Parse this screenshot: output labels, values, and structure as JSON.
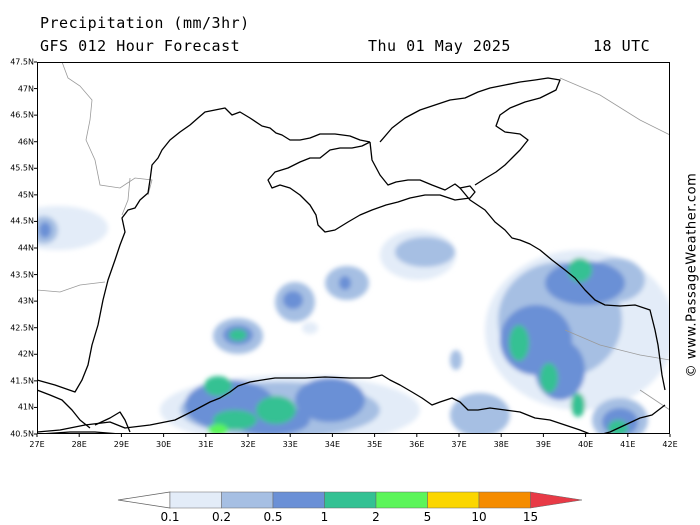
{
  "header": {
    "title": "Precipitation (mm/3hr)",
    "subtitle": "GFS 012 Hour Forecast",
    "date": "Thu 01 May 2025",
    "time": "18 UTC"
  },
  "credit": "© www.PassageWeather.com",
  "map": {
    "lon_range": [
      27,
      42
    ],
    "lat_range": [
      40.5,
      47.5
    ],
    "lat_ticks": [
      "47.5N",
      "47N",
      "46.5N",
      "46N",
      "45.5N",
      "45N",
      "44.5N",
      "44N",
      "43.5N",
      "43N",
      "42.5N",
      "42N",
      "41.5N",
      "41N",
      "40.5N"
    ],
    "lon_ticks": [
      "27E",
      "28E",
      "29E",
      "30E",
      "31E",
      "32E",
      "33E",
      "34E",
      "35E",
      "36E",
      "37E",
      "38E",
      "39E",
      "40E",
      "41E",
      "42E"
    ],
    "precip_colors": [
      "#e3ecf8",
      "#a6bfe3",
      "#6b90d6",
      "#34c193",
      "#5cf55a",
      "#fbd600",
      "#f58c00",
      "#e83a46"
    ]
  },
  "legend": {
    "labels": [
      "0.1",
      "0.2",
      "0.5",
      "1",
      "2",
      "5",
      "10",
      "15"
    ],
    "colors": [
      "#e3ecf8",
      "#a6bfe3",
      "#6b90d6",
      "#34c193",
      "#5cf55a",
      "#fbd600",
      "#f58c00",
      "#e83a46"
    ]
  }
}
